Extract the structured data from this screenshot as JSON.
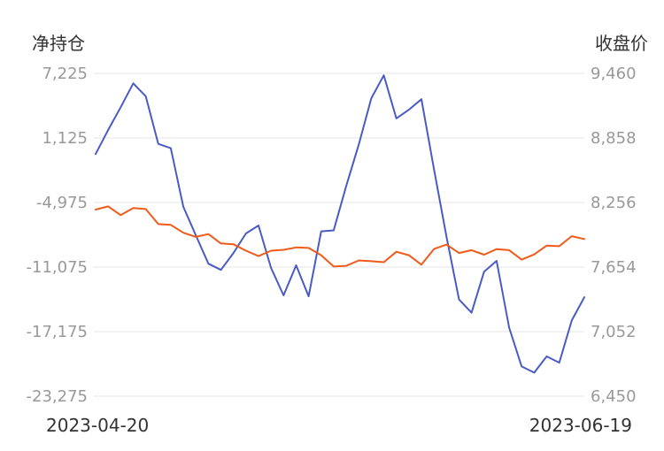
{
  "chart_data": {
    "type": "line",
    "left_axis": {
      "title": "净持仓",
      "ticks": [
        "7,225",
        "1,125",
        "-4,975",
        "-11,075",
        "-17,175",
        "-23,275"
      ],
      "range": [
        -23275,
        7225
      ]
    },
    "right_axis": {
      "title": "收盘价",
      "ticks": [
        "9,460",
        "8,858",
        "8,256",
        "7,654",
        "7,052",
        "6,450"
      ],
      "range": [
        6450,
        9460
      ]
    },
    "x_start_label": "2023-04-20",
    "x_end_label": "2023-06-19",
    "grid": true,
    "colors": {
      "net_position": "#4a5bc4",
      "close_price": "#f05a1a"
    },
    "series": [
      {
        "key": "net_position",
        "axis": "left",
        "values": [
          -393,
          1882,
          4023,
          6281,
          5071,
          568,
          154,
          -5388,
          -8078,
          -10754,
          -11343,
          -9747,
          -7898,
          -7150,
          -11165,
          -13745,
          -10905,
          -13838,
          -7698,
          -7604,
          -3405,
          489,
          4874,
          7039,
          2971,
          3787,
          4788,
          -1823,
          -8203,
          -14145,
          -15389,
          -11507,
          -10492,
          -16800,
          -20466,
          -21052,
          -19511,
          -20110,
          -16121,
          -13924
        ]
      },
      {
        "key": "close_price",
        "axis": "left",
        "values": [
          -5645,
          -5345,
          -6169,
          -5503,
          -5592,
          -7013,
          -7090,
          -7830,
          -8224,
          -7961,
          -8846,
          -8921,
          -9525,
          -10035,
          -9525,
          -9446,
          -9222,
          -9273,
          -9952,
          -11024,
          -10954,
          -10452,
          -10526,
          -10615,
          -9633,
          -9959,
          -10852,
          -9368,
          -8949,
          -9749,
          -9480,
          -9901,
          -9379,
          -9481,
          -10371,
          -9882,
          -9042,
          -9104,
          -8158,
          -8427
        ]
      }
    ]
  }
}
